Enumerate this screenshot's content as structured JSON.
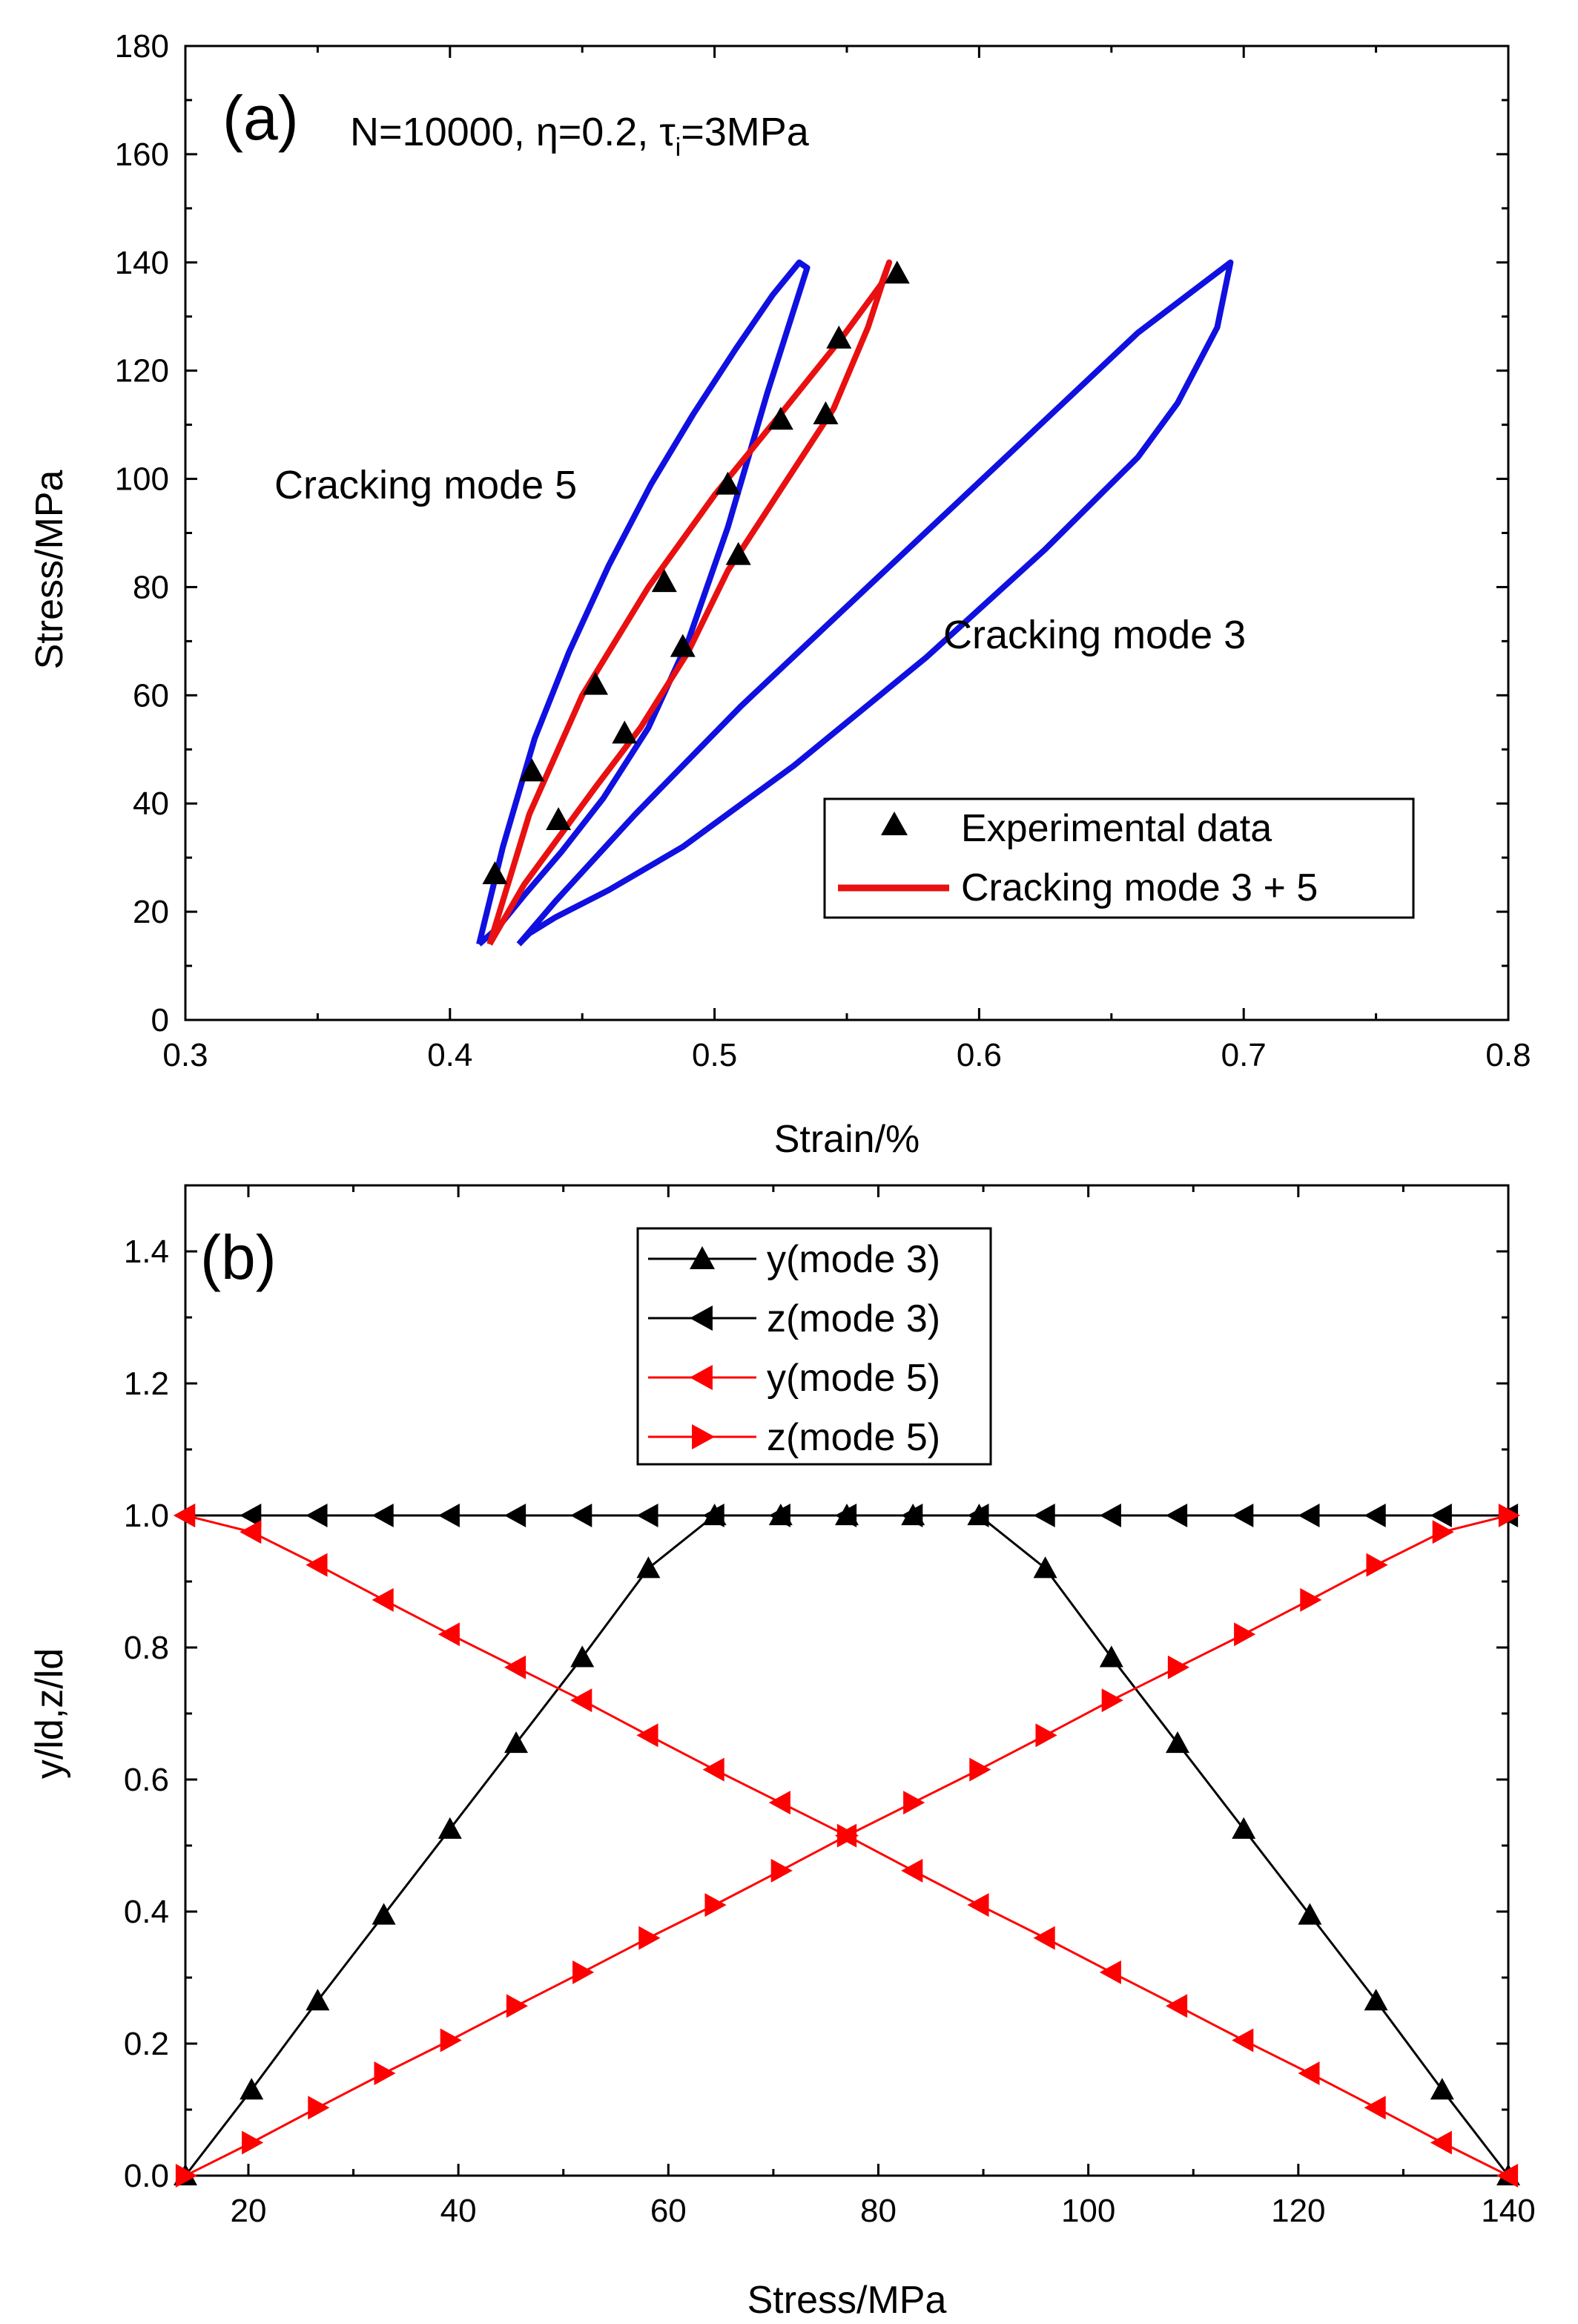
{
  "chart_data": [
    {
      "panel": "(a)",
      "type": "line",
      "title": "N=10000, η=0.2, τ",
      "title_subscript": "i",
      "title_suffix": "=3MPa",
      "xlabel": "Strain/%",
      "ylabel": "Stress/MPa",
      "xlim": [
        0.3,
        0.8
      ],
      "ylim": [
        0,
        180
      ],
      "xticks": [
        "0.3",
        "0.4",
        "0.5",
        "0.6",
        "0.7",
        "0.8"
      ],
      "yticks": [
        "0",
        "20",
        "40",
        "60",
        "80",
        "100",
        "120",
        "140",
        "160",
        "180"
      ],
      "annotations": [
        "Cracking mode 5",
        "Cracking mode 3"
      ],
      "legend": {
        "placement": "bottom-right",
        "entries": [
          "Experimental data",
          "Cracking mode 3 + 5"
        ]
      },
      "series": [
        {
          "name": "Experimental data",
          "style": "marker",
          "marker": "triangle-up",
          "color": "#000000",
          "x": [
            0.417,
            0.431,
            0.441,
            0.455,
            0.466,
            0.481,
            0.488,
            0.505,
            0.509,
            0.525,
            0.542,
            0.547,
            0.569
          ],
          "y": [
            27,
            46,
            37,
            62,
            53,
            81,
            69,
            99,
            86,
            111,
            112,
            126,
            138
          ]
        },
        {
          "name": "Cracking mode 5",
          "style": "line",
          "color": "#1010e0",
          "x": [
            0.411,
            0.42,
            0.432,
            0.445,
            0.46,
            0.476,
            0.492,
            0.508,
            0.522,
            0.532,
            0.535,
            0.52,
            0.505,
            0.49,
            0.475,
            0.458,
            0.442,
            0.428,
            0.418,
            0.411
          ],
          "y": [
            14,
            32,
            52,
            68,
            84,
            99,
            112,
            124,
            134,
            140,
            139,
            116,
            91,
            70,
            54,
            41,
            31,
            23,
            17,
            14
          ]
        },
        {
          "name": "Cracking mode 3",
          "style": "line",
          "color": "#1010e0",
          "x": [
            0.426,
            0.44,
            0.47,
            0.51,
            0.56,
            0.61,
            0.66,
            0.695,
            0.69,
            0.675,
            0.66,
            0.625,
            0.58,
            0.53,
            0.488,
            0.46,
            0.44,
            0.43,
            0.426
          ],
          "y": [
            14,
            22,
            38,
            58,
            81,
            104,
            127,
            140,
            128,
            114,
            104,
            87,
            67,
            47,
            32,
            24,
            19,
            16,
            14
          ]
        },
        {
          "name": "Cracking mode 3 + 5",
          "style": "line",
          "color": "#e81010",
          "x": [
            0.415,
            0.43,
            0.45,
            0.475,
            0.5,
            0.525,
            0.548,
            0.563,
            0.566,
            0.558,
            0.545,
            0.525,
            0.505,
            0.49,
            0.472,
            0.455,
            0.44,
            0.428,
            0.415
          ],
          "y": [
            14,
            38,
            60,
            80,
            97,
            112,
            126,
            136,
            140,
            128,
            113,
            98,
            83,
            68,
            54,
            43,
            33,
            25,
            14
          ]
        }
      ]
    },
    {
      "panel": "(b)",
      "type": "line",
      "title": "",
      "xlabel": "Stress/MPa",
      "ylabel": "y/ld,z/ld",
      "xlim": [
        14,
        140
      ],
      "ylim": [
        0,
        1.5
      ],
      "xticks": [
        "20",
        "40",
        "60",
        "80",
        "100",
        "120",
        "140"
      ],
      "yticks": [
        "0.0",
        "0.2",
        "0.4",
        "0.6",
        "0.8",
        "1.0",
        "1.2",
        "1.4"
      ],
      "legend": {
        "placement": "top-center",
        "entries": [
          "y(mode 3)",
          "z(mode 3)",
          "y(mode 5)",
          "z(mode 5)"
        ]
      },
      "x": [
        14,
        20.3,
        26.6,
        32.9,
        39.2,
        45.5,
        51.8,
        58.1,
        64.4,
        70.7,
        77,
        83.3,
        89.6,
        95.9,
        102.2,
        108.5,
        114.8,
        121.1,
        127.4,
        133.7,
        140
      ],
      "series": [
        {
          "name": "y(mode 3)",
          "color": "#000000",
          "marker": "triangle-up",
          "values": [
            0.0,
            0.13,
            0.265,
            0.395,
            0.525,
            0.655,
            0.785,
            0.92,
            1.0,
            1.0,
            1.0,
            1.0,
            1.0,
            0.92,
            0.785,
            0.655,
            0.525,
            0.395,
            0.265,
            0.13,
            0.0
          ]
        },
        {
          "name": "z(mode 3)",
          "color": "#000000",
          "marker": "triangle-left",
          "values": [
            1.0,
            1.0,
            1.0,
            1.0,
            1.0,
            1.0,
            1.0,
            1.0,
            1.0,
            1.0,
            1.0,
            1.0,
            1.0,
            1.0,
            1.0,
            1.0,
            1.0,
            1.0,
            1.0,
            1.0,
            1.0
          ]
        },
        {
          "name": "y(mode 5)",
          "color": "#ff0000",
          "marker": "triangle-left",
          "values": [
            1.0,
            0.975,
            0.925,
            0.872,
            0.82,
            0.77,
            0.72,
            0.667,
            0.615,
            0.565,
            0.515,
            0.462,
            0.41,
            0.36,
            0.308,
            0.257,
            0.205,
            0.155,
            0.103,
            0.05,
            0.0
          ]
        },
        {
          "name": "z(mode 5)",
          "color": "#ff0000",
          "marker": "triangle-right",
          "values": [
            0.0,
            0.05,
            0.103,
            0.155,
            0.205,
            0.257,
            0.308,
            0.36,
            0.41,
            0.462,
            0.515,
            0.565,
            0.615,
            0.667,
            0.72,
            0.77,
            0.82,
            0.872,
            0.925,
            0.975,
            1.0
          ]
        }
      ]
    }
  ]
}
